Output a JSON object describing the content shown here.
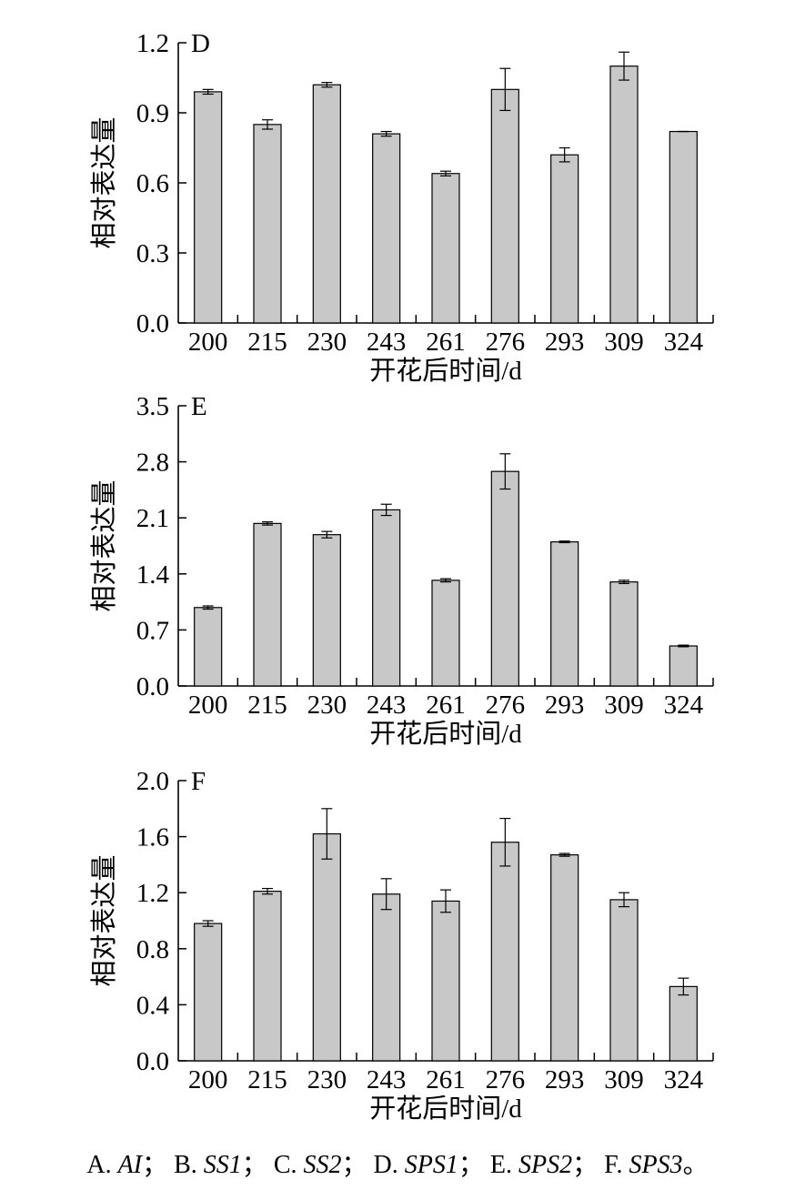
{
  "chart_data": [
    {
      "type": "bar",
      "panel": "D",
      "xlabel": "开花后时间/d",
      "ylabel": "相对表达量",
      "categories": [
        "200",
        "215",
        "230",
        "243",
        "261",
        "276",
        "293",
        "309",
        "324"
      ],
      "values": [
        0.99,
        0.85,
        1.02,
        0.81,
        0.64,
        1.0,
        0.72,
        1.1,
        0.82
      ],
      "errors": [
        0.01,
        0.02,
        0.01,
        0.01,
        0.01,
        0.09,
        0.03,
        0.06,
        0.0
      ],
      "ylim": [
        0,
        1.2
      ],
      "yticks": [
        "0.0",
        "0.3",
        "0.6",
        "0.9",
        "1.2"
      ],
      "bar_color": "#c8c8c8"
    },
    {
      "type": "bar",
      "panel": "E",
      "xlabel": "开花后时间/d",
      "ylabel": "相对表达量",
      "categories": [
        "200",
        "215",
        "230",
        "243",
        "261",
        "276",
        "293",
        "309",
        "324"
      ],
      "values": [
        0.98,
        2.03,
        1.89,
        2.2,
        1.32,
        2.68,
        1.8,
        1.3,
        0.5
      ],
      "errors": [
        0.02,
        0.02,
        0.04,
        0.07,
        0.02,
        0.22,
        0.01,
        0.02,
        0.01
      ],
      "ylim": [
        0,
        3.5
      ],
      "yticks": [
        "0.0",
        "0.7",
        "1.4",
        "2.1",
        "2.8",
        "3.5"
      ],
      "bar_color": "#c8c8c8"
    },
    {
      "type": "bar",
      "panel": "F",
      "xlabel": "开花后时间/d",
      "ylabel": "相对表达量",
      "categories": [
        "200",
        "215",
        "230",
        "243",
        "261",
        "276",
        "293",
        "309",
        "324"
      ],
      "values": [
        0.98,
        1.21,
        1.62,
        1.19,
        1.14,
        1.56,
        1.47,
        1.15,
        0.53
      ],
      "errors": [
        0.02,
        0.02,
        0.18,
        0.11,
        0.08,
        0.17,
        0.01,
        0.05,
        0.06
      ],
      "ylim": [
        0,
        2.0
      ],
      "yticks": [
        "0.0",
        "0.4",
        "0.8",
        "1.2",
        "1.6",
        "2.0"
      ],
      "bar_color": "#c8c8c8"
    }
  ],
  "caption": {
    "parts": [
      {
        "label": "A. ",
        "gene": "AI",
        "sep": "；"
      },
      {
        "label": "B. ",
        "gene": "SS1",
        "sep": "；"
      },
      {
        "label": "C. ",
        "gene": "SS2",
        "sep": "；"
      },
      {
        "label": "D. ",
        "gene": "SPS1",
        "sep": "；"
      },
      {
        "label": "E. ",
        "gene": "SPS2",
        "sep": "；"
      },
      {
        "label": "F. ",
        "gene": "SPS3",
        "sep": "。"
      }
    ]
  }
}
